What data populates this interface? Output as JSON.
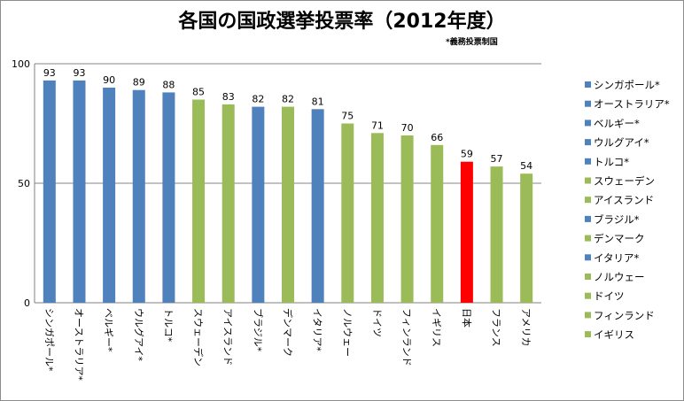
{
  "chart_data": {
    "type": "bar",
    "title": "各国の国政選挙投票率（2012年度）",
    "note": "*義務投票制国",
    "xlabel": "",
    "ylabel": "",
    "ylim": [
      0,
      100
    ],
    "yticks": [
      "0",
      "50",
      "100"
    ],
    "grid": true,
    "legend_position": "right",
    "categories": [
      "シンガポール*",
      "オーストラリア*",
      "ベルギー*",
      "ウルグアイ*",
      "トルコ*",
      "スウェーデン",
      "アイスランド",
      "ブラジル*",
      "デンマーク",
      "イタリア*",
      "ノルウェー",
      "ドイツ",
      "フィンランド",
      "イギリス",
      "日本",
      "フランス",
      "アメリカ"
    ],
    "values": [
      93,
      93,
      90,
      89,
      88,
      85,
      83,
      82,
      82,
      81,
      75,
      71,
      70,
      66,
      59,
      57,
      54
    ],
    "bar_colors": [
      "#4f81bd",
      "#4f81bd",
      "#4f81bd",
      "#4f81bd",
      "#4f81bd",
      "#9bbb59",
      "#9bbb59",
      "#4f81bd",
      "#9bbb59",
      "#4f81bd",
      "#9bbb59",
      "#9bbb59",
      "#9bbb59",
      "#9bbb59",
      "#ff0000",
      "#9bbb59",
      "#9bbb59"
    ],
    "legend": [
      {
        "label": "シンガポール*",
        "color": "#4f81bd"
      },
      {
        "label": "オーストラリア*",
        "color": "#4f81bd"
      },
      {
        "label": "ベルギー*",
        "color": "#4f81bd"
      },
      {
        "label": "ウルグアイ*",
        "color": "#4f81bd"
      },
      {
        "label": "トルコ*",
        "color": "#4f81bd"
      },
      {
        "label": "スウェーデン",
        "color": "#9bbb59"
      },
      {
        "label": "アイスランド",
        "color": "#9bbb59"
      },
      {
        "label": "ブラジル*",
        "color": "#4f81bd"
      },
      {
        "label": "デンマーク",
        "color": "#9bbb59"
      },
      {
        "label": "イタリア*",
        "color": "#4f81bd"
      },
      {
        "label": "ノルウェー",
        "color": "#9bbb59"
      },
      {
        "label": "ドイツ",
        "color": "#9bbb59"
      },
      {
        "label": "フィンランド",
        "color": "#9bbb59"
      },
      {
        "label": "イギリス",
        "color": "#9bbb59"
      }
    ]
  }
}
